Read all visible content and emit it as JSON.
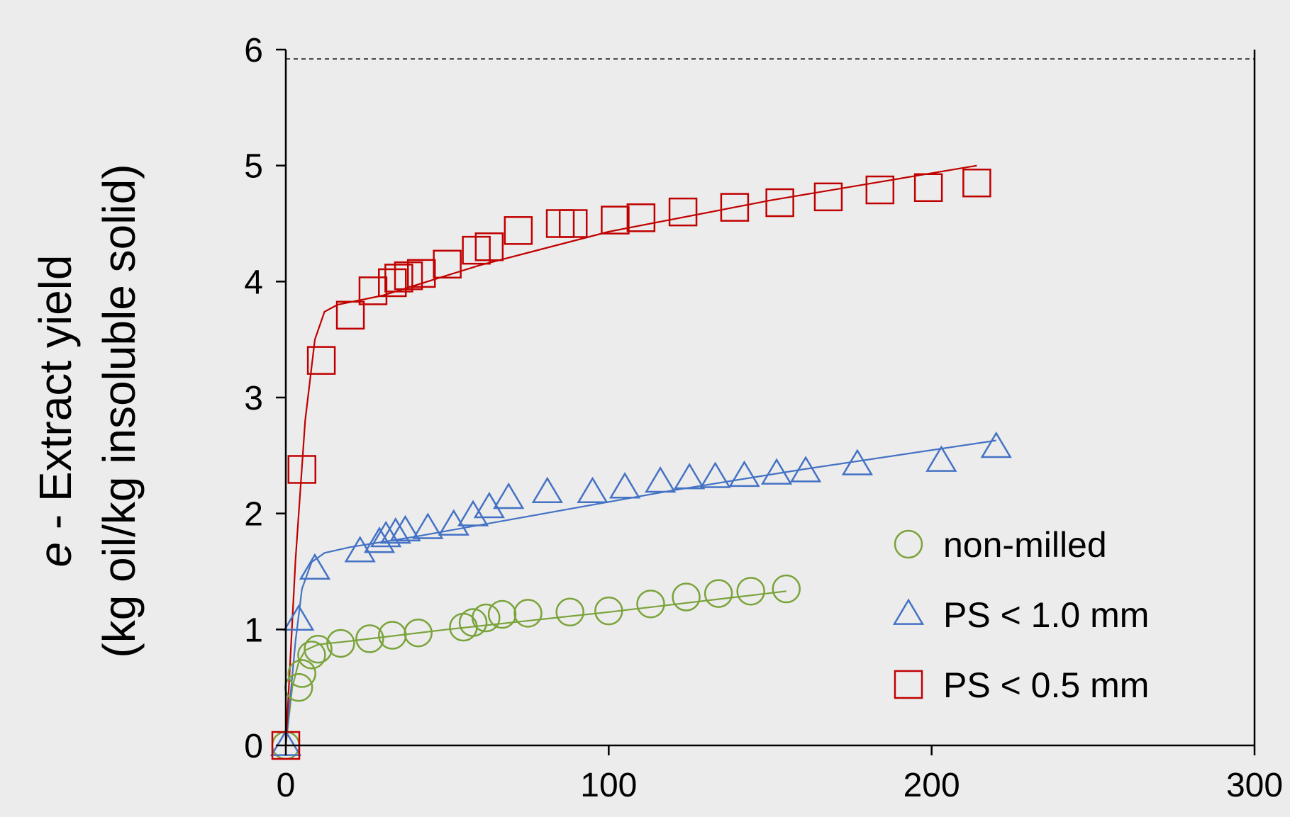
{
  "chart_data": {
    "type": "scatter",
    "ylabel_italic": "e",
    "ylabel_line1": " - Extract yield",
    "ylabel_line2": "(kg oil/kg insoluble solid)",
    "xlabel": "",
    "xlim": [
      0,
      300
    ],
    "ylim": [
      0,
      6
    ],
    "x_ticks": [
      0,
      100,
      200,
      300
    ],
    "y_ticks": [
      0,
      1,
      2,
      3,
      4,
      5,
      6
    ],
    "reference_line": {
      "y": 5.92,
      "style": "dashed"
    },
    "legend_position": "right",
    "series": [
      {
        "name": "non-milled",
        "marker": "circle",
        "color": "#7aa33a",
        "points": [
          [
            0,
            0
          ],
          [
            4,
            0.5
          ],
          [
            5,
            0.62
          ],
          [
            8,
            0.78
          ],
          [
            10,
            0.83
          ],
          [
            17,
            0.88
          ],
          [
            26,
            0.92
          ],
          [
            33,
            0.95
          ],
          [
            41,
            0.97
          ],
          [
            55,
            1.02
          ],
          [
            58,
            1.06
          ],
          [
            62,
            1.1
          ],
          [
            67,
            1.13
          ],
          [
            75,
            1.14
          ],
          [
            88,
            1.15
          ],
          [
            100,
            1.16
          ],
          [
            113,
            1.22
          ],
          [
            124,
            1.28
          ],
          [
            134,
            1.31
          ],
          [
            144,
            1.33
          ],
          [
            155,
            1.35
          ]
        ],
        "fit": [
          [
            0,
            0
          ],
          [
            2,
            0.5
          ],
          [
            4,
            0.72
          ],
          [
            6,
            0.82
          ],
          [
            10,
            0.87
          ],
          [
            20,
            0.9
          ],
          [
            50,
            1.0
          ],
          [
            100,
            1.15
          ],
          [
            155,
            1.33
          ]
        ]
      },
      {
        "name": "PS < 1.0 mm",
        "marker": "triangle",
        "color": "#4472c4",
        "points": [
          [
            0,
            0
          ],
          [
            4,
            1.08
          ],
          [
            9,
            1.52
          ],
          [
            23,
            1.67
          ],
          [
            29,
            1.75
          ],
          [
            31,
            1.8
          ],
          [
            34,
            1.83
          ],
          [
            37,
            1.85
          ],
          [
            44,
            1.87
          ],
          [
            52,
            1.9
          ],
          [
            58,
            1.98
          ],
          [
            63,
            2.05
          ],
          [
            69,
            2.13
          ],
          [
            81,
            2.18
          ],
          [
            95,
            2.18
          ],
          [
            105,
            2.22
          ],
          [
            116,
            2.27
          ],
          [
            125,
            2.3
          ],
          [
            133,
            2.31
          ],
          [
            142,
            2.32
          ],
          [
            152,
            2.34
          ],
          [
            161,
            2.36
          ],
          [
            177,
            2.42
          ],
          [
            203,
            2.45
          ],
          [
            220,
            2.57
          ]
        ],
        "fit": [
          [
            0,
            0
          ],
          [
            3,
            0.9
          ],
          [
            5,
            1.35
          ],
          [
            8,
            1.58
          ],
          [
            12,
            1.66
          ],
          [
            20,
            1.71
          ],
          [
            40,
            1.8
          ],
          [
            80,
            2.0
          ],
          [
            120,
            2.2
          ],
          [
            160,
            2.38
          ],
          [
            220,
            2.63
          ]
        ]
      },
      {
        "name": "PS < 0.5 mm",
        "marker": "square",
        "color": "#c00000",
        "points": [
          [
            0,
            0
          ],
          [
            5,
            2.38
          ],
          [
            11,
            3.32
          ],
          [
            20,
            3.71
          ],
          [
            27,
            3.92
          ],
          [
            33,
            3.99
          ],
          [
            35,
            4.03
          ],
          [
            38,
            4.05
          ],
          [
            42,
            4.07
          ],
          [
            50,
            4.15
          ],
          [
            59,
            4.27
          ],
          [
            63,
            4.3
          ],
          [
            72,
            4.44
          ],
          [
            85,
            4.5
          ],
          [
            89,
            4.5
          ],
          [
            102,
            4.53
          ],
          [
            110,
            4.55
          ],
          [
            123,
            4.6
          ],
          [
            139,
            4.64
          ],
          [
            153,
            4.68
          ],
          [
            168,
            4.73
          ],
          [
            184,
            4.79
          ],
          [
            199,
            4.81
          ],
          [
            214,
            4.85
          ]
        ],
        "fit": [
          [
            0,
            0
          ],
          [
            3,
            1.6
          ],
          [
            6,
            2.8
          ],
          [
            9,
            3.5
          ],
          [
            12,
            3.74
          ],
          [
            16,
            3.8
          ],
          [
            30,
            3.88
          ],
          [
            60,
            4.14
          ],
          [
            100,
            4.43
          ],
          [
            150,
            4.7
          ],
          [
            214,
            5.0
          ]
        ]
      }
    ]
  }
}
